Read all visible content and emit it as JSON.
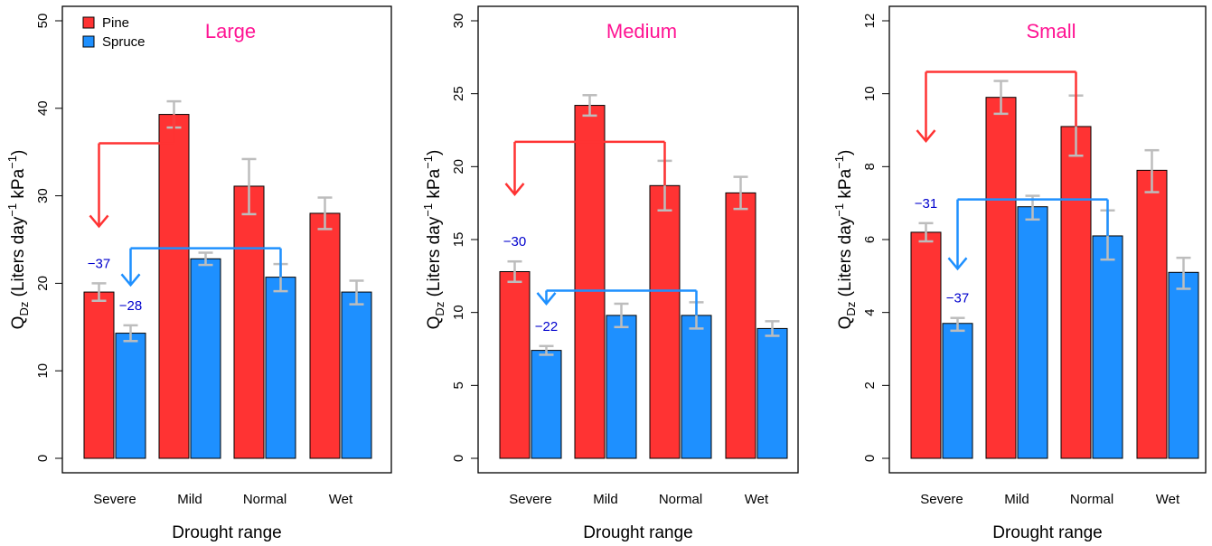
{
  "colors": {
    "pine": "#ff3333",
    "spruce": "#1e90ff",
    "error_bar": "#bdbdbd",
    "title": "#ff1493",
    "annotation_text": "#0000cd",
    "pine_arrow": "#ff3333",
    "spruce_arrow": "#1e90ff"
  },
  "legend": {
    "placement": "top-left",
    "entries": [
      "Pine",
      "Spruce"
    ]
  },
  "chart_data": [
    {
      "type": "bar",
      "title": "Large",
      "xlabel": "Drought range",
      "ylabel_main": "Q",
      "ylabel_sub": "Dz",
      "ylabel_unit_1": " (Liters day",
      "ylabel_exp_1": "−1",
      "ylabel_unit_2": " kPa",
      "ylabel_exp_2": "−1",
      "ylabel_close": ")",
      "categories": [
        "Severe",
        "Mild",
        "Normal",
        "Wet"
      ],
      "ylim": [
        0,
        50
      ],
      "yticks": [
        0,
        10,
        20,
        30,
        40,
        50
      ],
      "grid": false,
      "series": [
        {
          "name": "Pine",
          "values": [
            19.0,
            39.3,
            31.1,
            28.0
          ],
          "err_low": [
            18.0,
            37.8,
            27.9,
            26.2
          ],
          "err_high": [
            20.0,
            40.8,
            34.2,
            29.8
          ]
        },
        {
          "name": "Spruce",
          "values": [
            14.3,
            22.8,
            20.7,
            19.0
          ],
          "err_low": [
            13.4,
            22.1,
            19.1,
            17.6
          ],
          "err_high": [
            15.2,
            23.5,
            22.2,
            20.3
          ]
        }
      ],
      "annotations": [
        {
          "series": "Pine",
          "text": "−37",
          "from": "Mild",
          "to": "Severe",
          "level": 36.0,
          "tip": 26.5
        },
        {
          "series": "Spruce",
          "text": "−28",
          "from": "Normal",
          "to": "Severe",
          "level": 24.0,
          "tip": 19.8
        }
      ]
    },
    {
      "type": "bar",
      "title": "Medium",
      "xlabel": "Drought range",
      "ylabel_main": "Q",
      "ylabel_sub": "Dz",
      "ylabel_unit_1": " (Liters day",
      "ylabel_exp_1": "−1",
      "ylabel_unit_2": " kPa",
      "ylabel_exp_2": "−1",
      "ylabel_close": ")",
      "categories": [
        "Severe",
        "Mild",
        "Normal",
        "Wet"
      ],
      "ylim": [
        0,
        30
      ],
      "yticks": [
        0,
        5,
        10,
        15,
        20,
        25,
        30
      ],
      "grid": false,
      "series": [
        {
          "name": "Pine",
          "values": [
            12.8,
            24.2,
            18.7,
            18.2
          ],
          "err_low": [
            12.1,
            23.5,
            17.0,
            17.1
          ],
          "err_high": [
            13.5,
            24.9,
            20.4,
            19.3
          ]
        },
        {
          "name": "Spruce",
          "values": [
            7.4,
            9.8,
            9.8,
            8.9
          ],
          "err_low": [
            7.1,
            9.0,
            8.9,
            8.4
          ],
          "err_high": [
            7.7,
            10.6,
            10.7,
            9.4
          ]
        }
      ],
      "annotations": [
        {
          "series": "Pine",
          "text": "−30",
          "from": "Normal",
          "to": "Severe",
          "level": 21.7,
          "tip": 18.1
        },
        {
          "series": "Spruce",
          "text": "−22",
          "from": "Normal",
          "to": "Severe",
          "level": 11.5,
          "tip": 10.6
        }
      ]
    },
    {
      "type": "bar",
      "title": "Small",
      "xlabel": "Drought range",
      "ylabel_main": "Q",
      "ylabel_sub": "Dz",
      "ylabel_unit_1": " (Liters day",
      "ylabel_exp_1": "−1",
      "ylabel_unit_2": " kPa",
      "ylabel_exp_2": "−1",
      "ylabel_close": ")",
      "categories": [
        "Severe",
        "Mild",
        "Normal",
        "Wet"
      ],
      "ylim": [
        0,
        12
      ],
      "yticks": [
        0,
        2,
        4,
        6,
        8,
        10,
        12
      ],
      "grid": false,
      "series": [
        {
          "name": "Pine",
          "values": [
            6.2,
            9.9,
            9.1,
            7.9
          ],
          "err_low": [
            5.95,
            9.45,
            8.3,
            7.3
          ],
          "err_high": [
            6.45,
            10.35,
            9.95,
            8.45
          ]
        },
        {
          "name": "Spruce",
          "values": [
            3.7,
            6.9,
            6.1,
            5.1
          ],
          "err_low": [
            3.5,
            6.55,
            5.45,
            4.65
          ],
          "err_high": [
            3.85,
            7.2,
            6.8,
            5.5
          ]
        }
      ],
      "annotations": [
        {
          "series": "Pine",
          "text": "−31",
          "from": "Normal",
          "to": "Severe",
          "level": 10.6,
          "tip": 8.7
        },
        {
          "series": "Spruce",
          "text": "−37",
          "from": "Normal",
          "to": "Severe",
          "level": 7.1,
          "tip": 5.2
        }
      ]
    }
  ]
}
